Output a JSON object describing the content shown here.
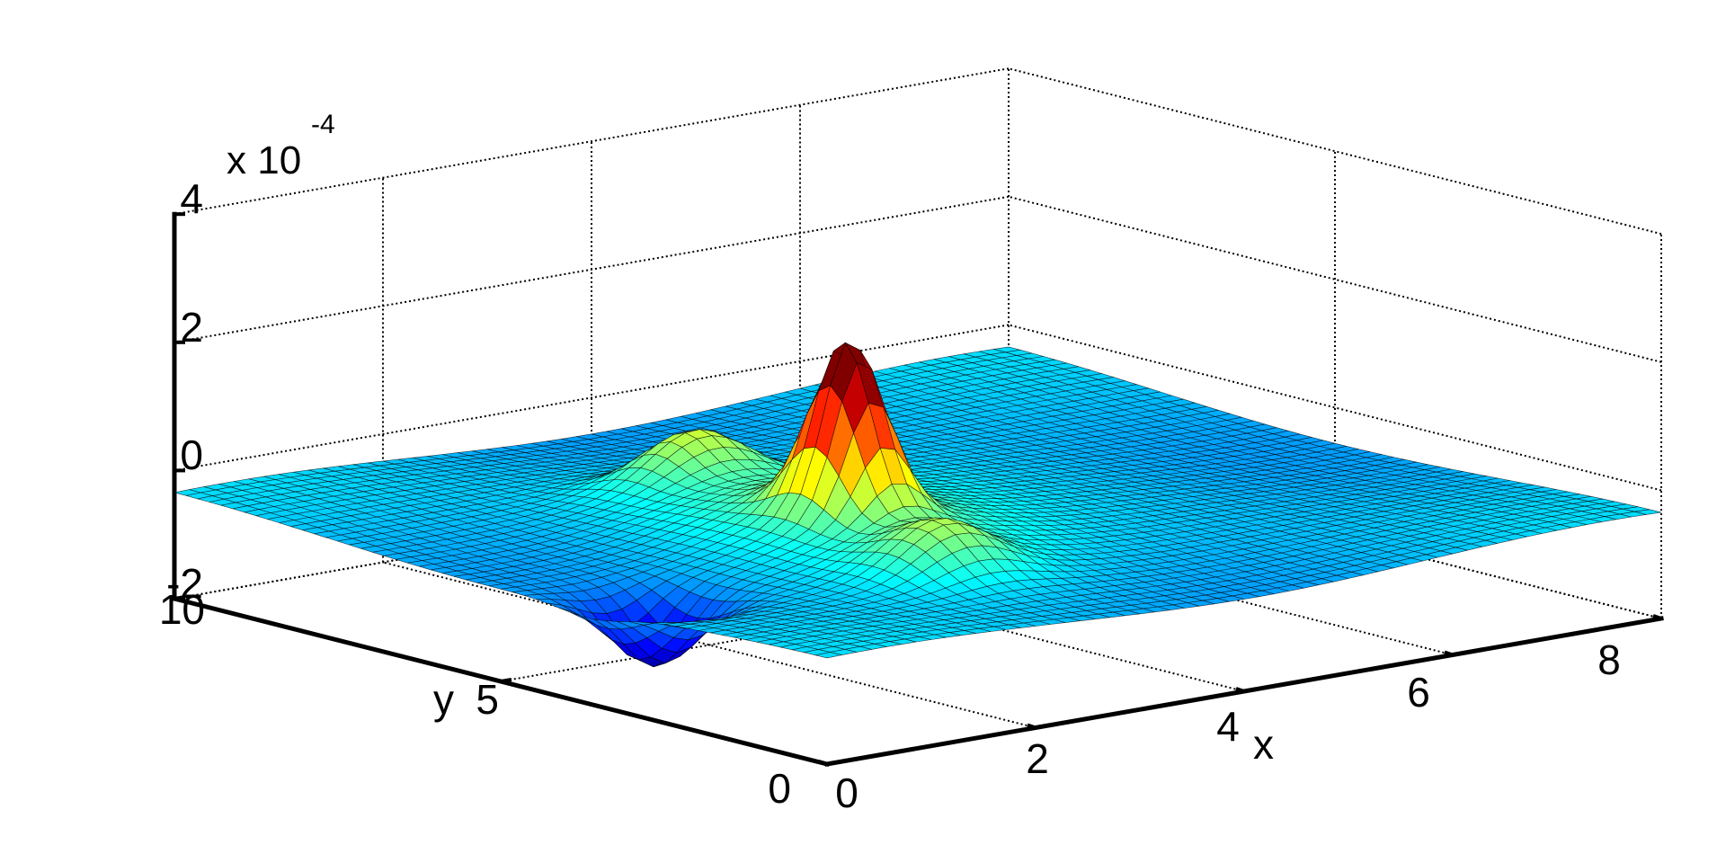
{
  "chart_data": {
    "type": "surface",
    "xlabel": "x",
    "ylabel": "y",
    "zlabel": "",
    "z_multiplier_label": {
      "base": "x 10",
      "exponent": "-4"
    },
    "xlim": [
      0,
      8
    ],
    "ylim": [
      0,
      10
    ],
    "zlim": [
      -2,
      4
    ],
    "x_ticks": [
      "0",
      "2",
      "4",
      "6",
      "8"
    ],
    "y_ticks": [
      "0",
      "5",
      "10"
    ],
    "z_ticks": [
      "-2",
      "0",
      "2",
      "4"
    ],
    "grid": true,
    "colormap": "jet",
    "features": [
      {
        "kind": "peak",
        "x": 2.9,
        "y": 4.3,
        "z_e4": 2.1
      },
      {
        "kind": "ridge",
        "x": 3.1,
        "y": 7.0,
        "z_e4": 0.3
      },
      {
        "kind": "ridge",
        "x": 2.6,
        "y": 2.4,
        "z_e4": 0.2
      },
      {
        "kind": "trough",
        "x": 0.6,
        "y": 3.6,
        "z_e4": -1.5
      }
    ]
  },
  "colors": {
    "surface_edge": "#000000",
    "colormap_low": "#00007f",
    "colormap_high": "#7f0000"
  }
}
